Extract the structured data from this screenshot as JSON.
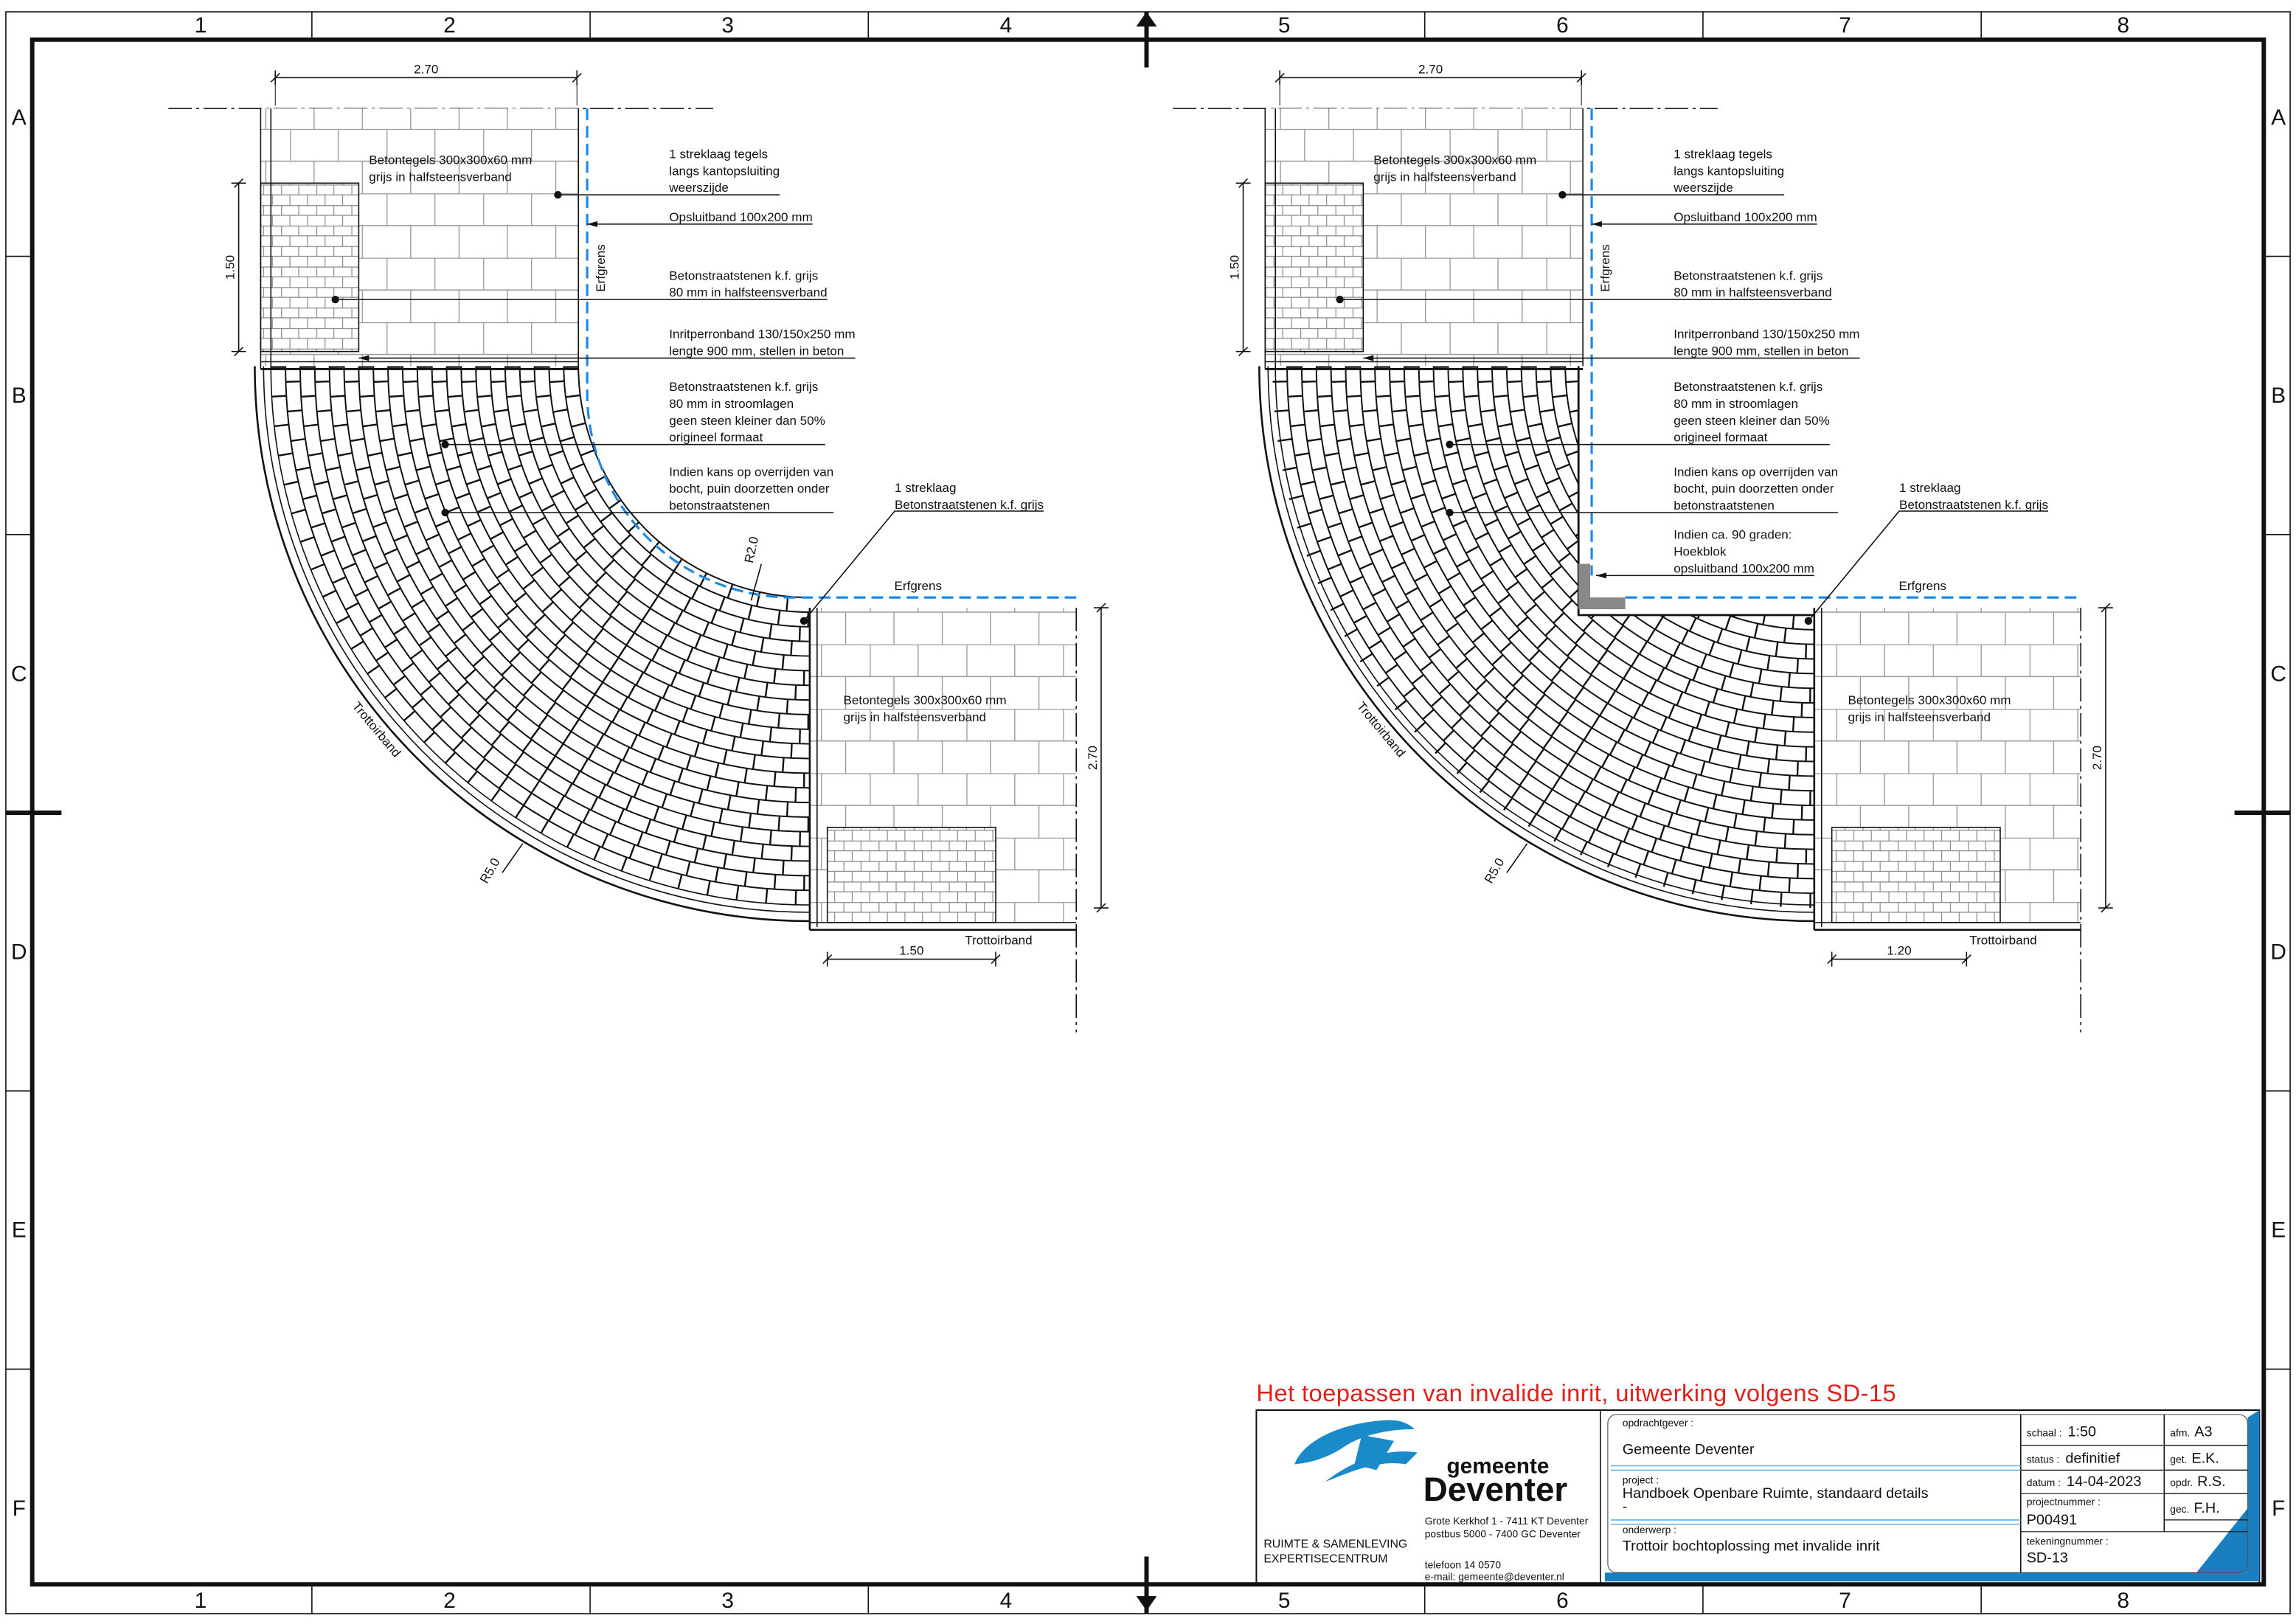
{
  "sheet": {
    "columns": [
      "1",
      "2",
      "3",
      "4",
      "5",
      "6",
      "7",
      "8"
    ],
    "rows": [
      "A",
      "B",
      "C",
      "D",
      "E",
      "F"
    ]
  },
  "details": [
    {
      "dims": {
        "top": "2.70",
        "side": "1.50",
        "right": "2.70",
        "bottom": "1.50"
      },
      "tiles_top": [
        "Betontegels 300x300x60 mm",
        "grijs in halfsteensverband"
      ],
      "tiles_bottom": [
        "Betontegels 300x300x60 mm",
        "grijs in halfsteensverband"
      ],
      "erfgrens": "Erfgrens",
      "radius_inner": "R2.0",
      "radius_outer": "R5.0",
      "curb": "Trottoirband",
      "annotations": [
        [
          "1 streklaag tegels",
          "langs kantopsluiting",
          "weerszijde"
        ],
        [
          "Opsluitband 100x200 mm"
        ],
        [
          "Betonstraatstenen k.f. grijs",
          "80 mm in halfsteensverband"
        ],
        [
          "Inritperronband 130/150x250 mm",
          "lengte 900 mm, stellen in beton"
        ],
        [
          "Betonstraatstenen k.f. grijs",
          "80 mm in stroomlagen",
          "geen steen kleiner dan 50%",
          "origineel formaat"
        ],
        [
          "Indien kans op overrijden van",
          "bocht, puin doorzetten onder",
          "betonstraatstenen"
        ]
      ],
      "edge_note": [
        "1 streklaag",
        "Betonstraatstenen k.f. grijs"
      ]
    },
    {
      "dims": {
        "top": "2.70",
        "side": "1.50",
        "right": "2.70",
        "bottom": "1.20"
      },
      "tiles_top": [
        "Betontegels 300x300x60 mm",
        "grijs in halfsteensverband"
      ],
      "tiles_bottom": [
        "Betontegels 300x300x60 mm",
        "grijs in halfsteensverband"
      ],
      "erfgrens": "Erfgrens",
      "radius_outer": "R5.0",
      "curb": "Trottoirband",
      "annotations": [
        [
          "1 streklaag tegels",
          "langs kantopsluiting",
          "weerszijde"
        ],
        [
          "Opsluitband 100x200 mm"
        ],
        [
          "Betonstraatstenen k.f. grijs",
          "80 mm in halfsteensverband"
        ],
        [
          "Inritperronband 130/150x250 mm",
          "lengte 900 mm, stellen in beton"
        ],
        [
          "Betonstraatstenen k.f. grijs",
          "80 mm in stroomlagen",
          "geen steen kleiner dan 50%",
          "origineel formaat"
        ],
        [
          "Indien kans op overrijden van",
          "bocht, puin doorzetten onder",
          "betonstraatstenen"
        ],
        [
          "Indien ca. 90 graden:",
          "Hoekblok",
          "opsluitband 100x200 mm"
        ]
      ],
      "edge_note": [
        "1 streklaag",
        "Betonstraatstenen k.f. grijs"
      ]
    }
  ],
  "note": "Het toepassen van invalide inrit, uitwerking volgens SD-15",
  "title_block": {
    "logo": {
      "line1": "gemeente",
      "line2": "Deventer"
    },
    "department": [
      "RUIMTE & SAMENLEVING",
      "EXPERTISECENTRUM"
    ],
    "address": [
      "Grote Kerkhof 1 - 7411 KT Deventer",
      "postbus 5000 - 7400 GC Deventer",
      "telefoon 14 0570",
      "e-mail: gemeente@deventer.nl"
    ],
    "client": {
      "label": "opdrachtgever :",
      "value": "Gemeente Deventer"
    },
    "project": {
      "label": "project :",
      "value": [
        "Handboek Openbare Ruimte, standaard details",
        "-"
      ]
    },
    "subject": {
      "label": "onderwerp :",
      "value": "Trottoir bochtoplossing met invalide inrit"
    },
    "project_number": {
      "label": "projectnummer :",
      "value": "P00491"
    },
    "drawing_number": {
      "label": "tekeningnummer :",
      "value": "SD-13"
    },
    "scale": {
      "label": "schaal :",
      "value": "1:50"
    },
    "status": {
      "label": "status :",
      "value": "definitief"
    },
    "date": {
      "label": "datum :",
      "value": "14-04-2023"
    },
    "format": {
      "label": "afm.",
      "value": "A3"
    },
    "drawn": {
      "label": "get.",
      "value": "E.K."
    },
    "client_ref": {
      "label": "opdr.",
      "value": "R.S."
    },
    "checked": {
      "label": "gec.",
      "value": "F.H."
    }
  }
}
